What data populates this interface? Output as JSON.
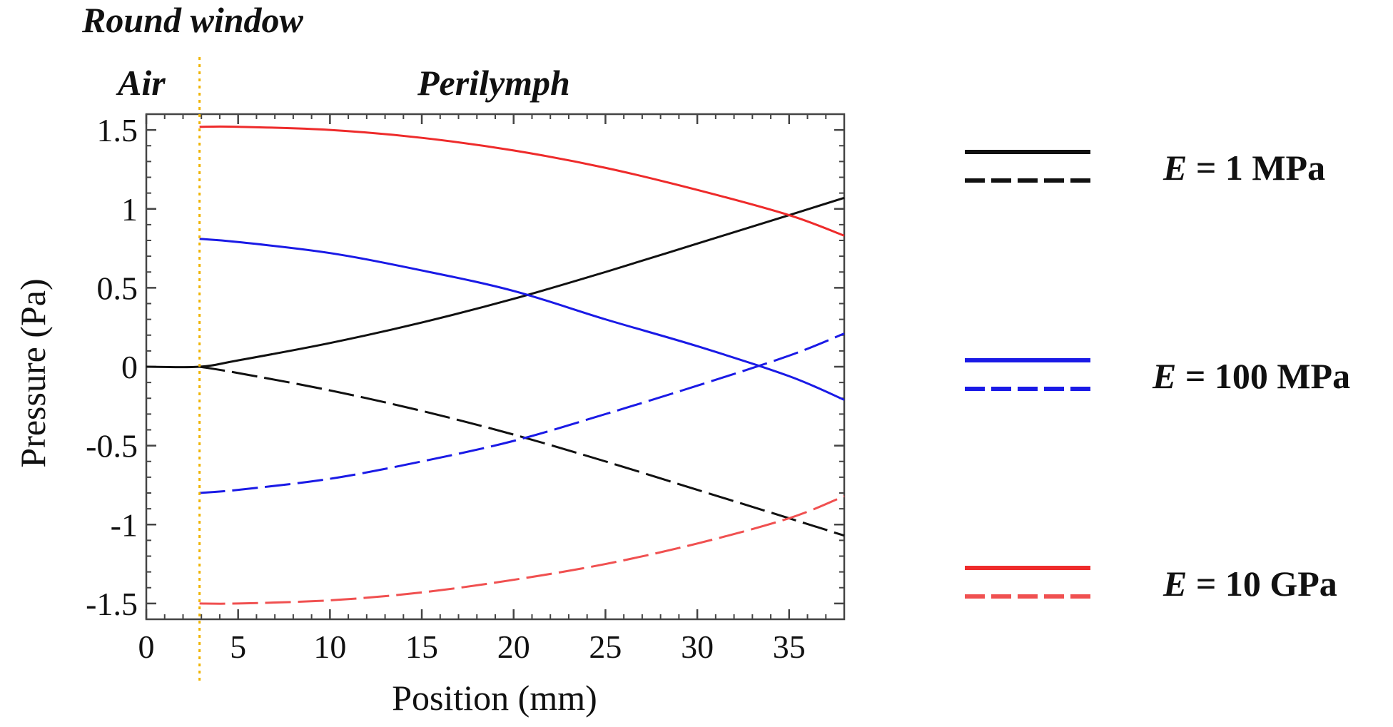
{
  "chart_data": {
    "type": "line",
    "xlabel": "Position (mm)",
    "ylabel": "Pressure (Pa)",
    "xlim": [
      0,
      38
    ],
    "ylim": [
      -1.6,
      1.6
    ],
    "x_ticks": [
      0,
      5,
      10,
      15,
      20,
      25,
      30,
      35
    ],
    "x_tick_labels": [
      "0",
      "5",
      "10",
      "15",
      "20",
      "25",
      "30",
      "35"
    ],
    "y_ticks": [
      1.5,
      1,
      0.5,
      0,
      -0.5,
      -1,
      -1.5
    ],
    "y_tick_labels": [
      "1.5",
      "1",
      "0.5",
      "0",
      "-0.5",
      "-1",
      "-1.5"
    ],
    "annotations": {
      "boundary_x": 2.9,
      "boundary_label": "Round window",
      "left_region": "Air",
      "right_region": "Perilymph"
    },
    "legend": [
      {
        "label_prefix": "E",
        "label_suffix": " = 1 MPa",
        "color": "#111111",
        "solid_color": "#111111",
        "dashed_color": "#111111"
      },
      {
        "label_prefix": "E",
        "label_suffix": " = 100 MPa",
        "color": "#1a1ae6",
        "solid_color": "#1a1ae6",
        "dashed_color": "#1a1ae6"
      },
      {
        "label_prefix": "E",
        "label_suffix": " = 10 GPa",
        "color": "#ee2b2b",
        "solid_color": "#ee2b2b",
        "dashed_color": "#f05050"
      }
    ],
    "series": [
      {
        "name": "E = 1 MPa (solid)",
        "color": "#111111",
        "dash": false,
        "x": [
          0,
          2.9,
          5,
          10,
          15,
          20,
          25,
          30,
          35,
          38
        ],
        "y": [
          0,
          0,
          0.04,
          0.15,
          0.28,
          0.43,
          0.6,
          0.78,
          0.96,
          1.07
        ]
      },
      {
        "name": "E = 1 MPa (dashed)",
        "color": "#111111",
        "dash": true,
        "x": [
          2.9,
          5,
          10,
          15,
          20,
          25,
          30,
          35,
          38
        ],
        "y": [
          0,
          -0.04,
          -0.15,
          -0.28,
          -0.43,
          -0.6,
          -0.78,
          -0.96,
          -1.07
        ]
      },
      {
        "name": "E = 100 MPa (solid)",
        "color": "#1a1ae6",
        "dash": false,
        "x": [
          2.9,
          5,
          10,
          15,
          20,
          25,
          30,
          35,
          38
        ],
        "y": [
          0.81,
          0.79,
          0.72,
          0.61,
          0.48,
          0.3,
          0.13,
          -0.06,
          -0.21
        ]
      },
      {
        "name": "E = 100 MPa (dashed)",
        "color": "#1a1ae6",
        "dash": true,
        "x": [
          2.9,
          5,
          10,
          15,
          20,
          25,
          30,
          35,
          38
        ],
        "y": [
          -0.8,
          -0.78,
          -0.71,
          -0.6,
          -0.47,
          -0.3,
          -0.12,
          0.07,
          0.21
        ]
      },
      {
        "name": "E = 10 GPa (solid)",
        "color": "#ee2b2b",
        "dash": false,
        "x": [
          2.9,
          5,
          10,
          15,
          20,
          25,
          30,
          35,
          38
        ],
        "y": [
          1.52,
          1.52,
          1.5,
          1.45,
          1.37,
          1.26,
          1.12,
          0.96,
          0.83
        ]
      },
      {
        "name": "E = 10 GPa (dashed)",
        "color": "#f05050",
        "dash": true,
        "x": [
          2.9,
          5,
          10,
          15,
          20,
          25,
          30,
          35,
          38
        ],
        "y": [
          -1.5,
          -1.5,
          -1.48,
          -1.43,
          -1.35,
          -1.25,
          -1.12,
          -0.96,
          -0.82
        ]
      }
    ]
  }
}
